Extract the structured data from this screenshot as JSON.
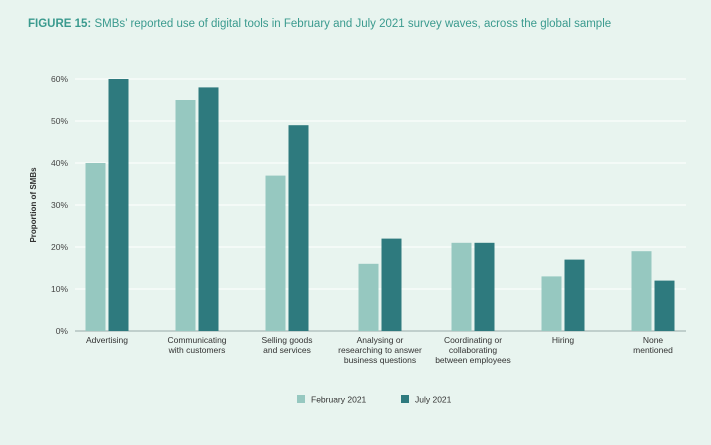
{
  "title_prefix": "FIGURE 15:",
  "title_text": " SMBs’ reported use of digital tools in February and July 2021 survey waves, across the global sample",
  "colors": {
    "title": "#3a9a8e",
    "february": "#96c8c0",
    "july": "#2e7a7e",
    "grid": "#ffffff",
    "background": "#e8f4ef"
  },
  "chart_data": {
    "type": "bar",
    "title": "SMBs’ reported use of digital tools in February and July 2021 survey waves, across the global sample",
    "xlabel": "",
    "ylabel": "Proportion of SMBs",
    "ylim": [
      0,
      60
    ],
    "yticks": [
      "0%",
      "10%",
      "20%",
      "30%",
      "40%",
      "50%",
      "60%"
    ],
    "grid": true,
    "legend_position": "bottom-center",
    "categories": [
      [
        "Advertising"
      ],
      [
        "Communicating",
        "with customers"
      ],
      [
        "Selling goods",
        "and services"
      ],
      [
        "Analysing or",
        "researching to answer",
        "business questions"
      ],
      [
        "Coordinating or",
        "collaborating",
        "between employees"
      ],
      [
        "Hiring"
      ],
      [
        "None",
        "mentioned"
      ]
    ],
    "series": [
      {
        "name": "February 2021",
        "color": "#96c8c0",
        "values": [
          40,
          55,
          37,
          16,
          21,
          13,
          19
        ]
      },
      {
        "name": "July 2021",
        "color": "#2e7a7e",
        "values": [
          60,
          58,
          49,
          22,
          21,
          17,
          12
        ]
      }
    ]
  }
}
